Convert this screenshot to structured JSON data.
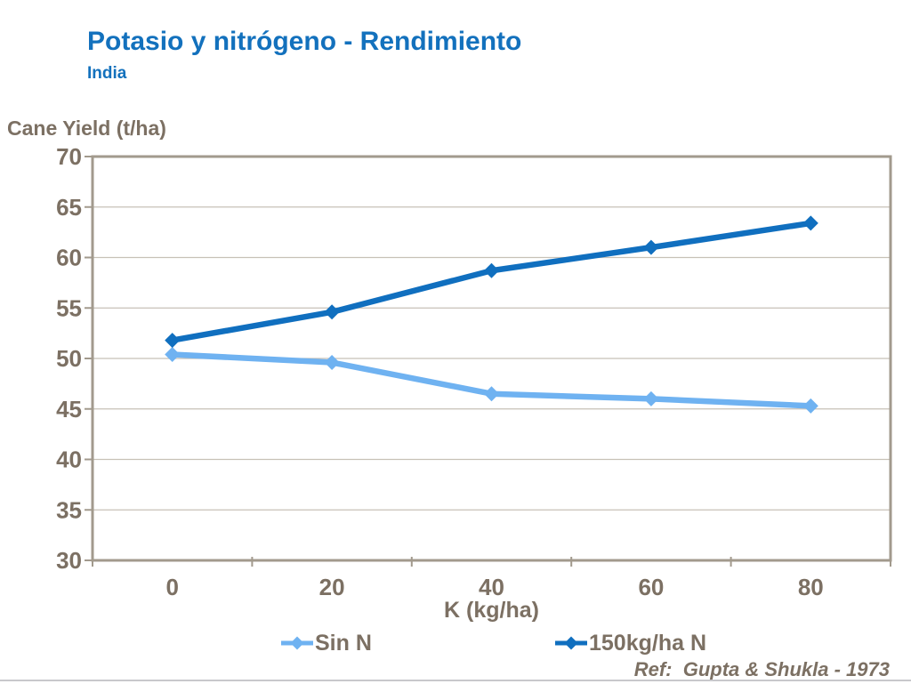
{
  "header": {
    "title": "Potasio y nitrógeno - Rendimiento",
    "subtitle": "India"
  },
  "chart_data": {
    "type": "line",
    "title": "Potasio y nitrógeno - Rendimiento",
    "subtitle": "India",
    "xlabel": "K (kg/ha)",
    "ylabel": "Cane Yield (t/ha)",
    "categories": [
      0,
      20,
      40,
      60,
      80
    ],
    "series": [
      {
        "name": "Sin N",
        "color": "#6FB2F1",
        "marker": "diamond",
        "values": [
          50.4,
          49.6,
          46.5,
          46.0,
          45.3
        ]
      },
      {
        "name": "150kg/ha N",
        "color": "#106FBF",
        "marker": "diamond",
        "values": [
          51.8,
          54.6,
          58.7,
          61.0,
          63.4
        ]
      }
    ],
    "ylim": [
      30,
      70
    ],
    "ytick_step": 5,
    "grid": true,
    "legend_position": "bottom"
  },
  "footer": {
    "ref": "Ref:  Gupta & Shukla - 1973"
  },
  "colors": {
    "title_blue": "#1371BD",
    "text_brown": "#7C7063",
    "axis_line": "#A29A8D",
    "gridline": "#C7C1B7",
    "divider": "#C8C8CC",
    "background": "#FFFFFF"
  }
}
